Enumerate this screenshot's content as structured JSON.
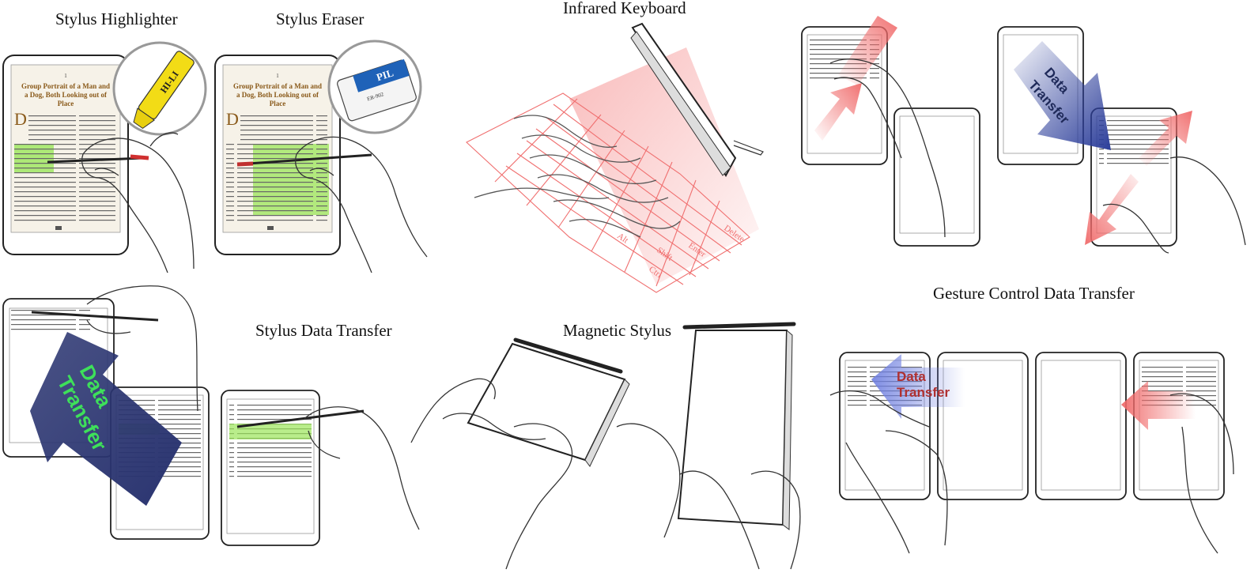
{
  "titles": {
    "stylus_highlighter": "Stylus Highlighter",
    "stylus_eraser": "Stylus Eraser",
    "infrared_keyboard": "Infrared Keyboard",
    "stylus_data_transfer": "Stylus Data Transfer",
    "magnetic_stylus": "Magnetic Stylus",
    "gesture_control": "Gesture Control Data Transfer"
  },
  "arrow_labels": {
    "top_right_line1": "Data",
    "top_right_line2": "Transfer",
    "stylus_line1": "Data",
    "stylus_line2": "Transfer",
    "gesture_line1": "Data",
    "gesture_line2": "Transfer"
  },
  "book": {
    "page_number": "1",
    "title_line1": "Group Portrait of a Man and",
    "title_line2": "a Dog, Both Looking out of",
    "title_line3": "Place",
    "drop_cap": "D"
  },
  "props": {
    "highlighter_brand": "HI-LI",
    "eraser_brand": "PIL",
    "eraser_code": "ER-902"
  },
  "keyboard_keys": {
    "delete": "Delete",
    "enter": "Enter",
    "shift": "Shift",
    "ctrl": "Ctrl",
    "alt": "Alt"
  },
  "colors": {
    "highlight_green": "#9be65a",
    "arrow_red": "#f06a6a",
    "arrow_blue": "#2c3e9a",
    "arrow_navy": "#2a3470",
    "label_green": "#3ee05a",
    "label_darkred": "#b03030",
    "laser_red": "#f26a6a"
  }
}
